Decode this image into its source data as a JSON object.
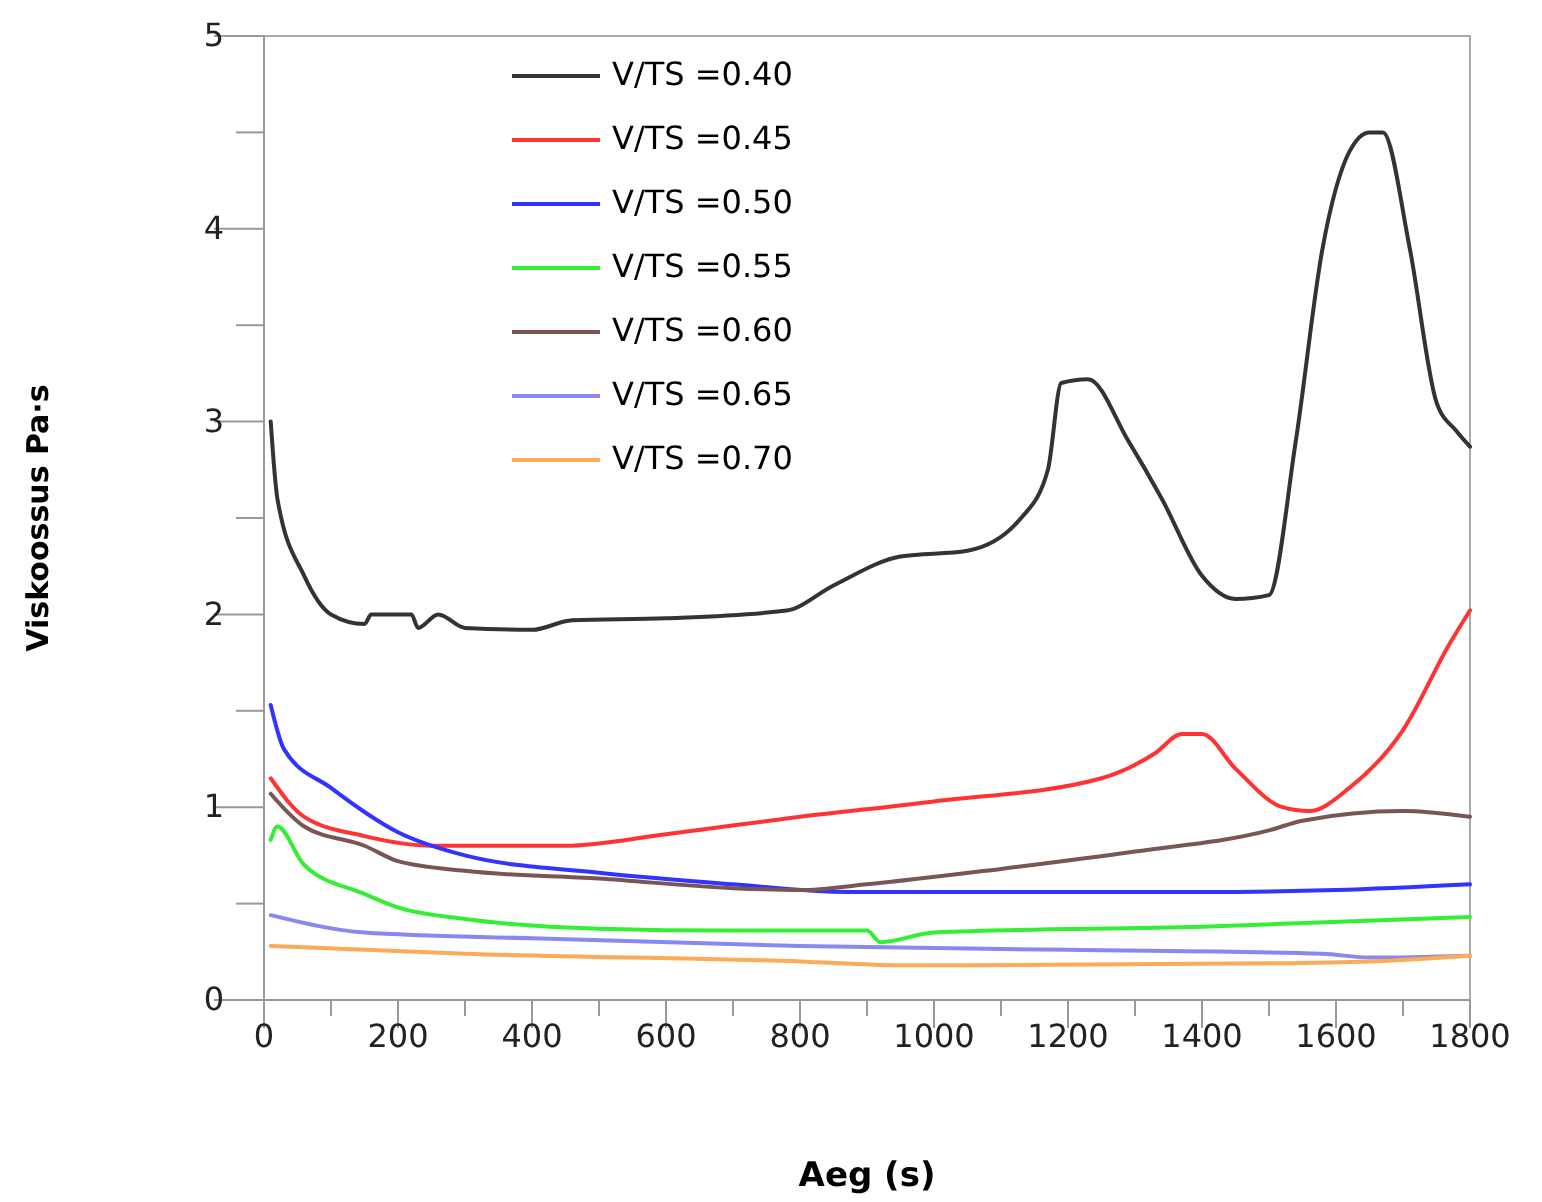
{
  "chart_data": {
    "type": "line",
    "xlabel": "Aeg (s)",
    "ylabel": "Viskoossus Pa·s",
    "xlim": [
      0,
      1800
    ],
    "ylim": [
      0,
      5
    ],
    "xticks": [
      0,
      {
        "value": 100,
        "label": null
      },
      200,
      {
        "value": 300,
        "label": null
      },
      400,
      {
        "value": 500,
        "label": null
      },
      600,
      {
        "value": 700,
        "label": null
      },
      800,
      {
        "value": 900,
        "label": null
      },
      1000,
      {
        "value": 1100,
        "label": null
      },
      1200,
      {
        "value": 1300,
        "label": null
      },
      1400,
      {
        "value": 1500,
        "label": null
      },
      1600,
      {
        "value": 1700,
        "label": null
      },
      1800
    ],
    "yticks": [
      0,
      {
        "value": 0.5,
        "label": null
      },
      1,
      {
        "value": 1.5,
        "label": null
      },
      2,
      {
        "value": 2.5,
        "label": null
      },
      3,
      {
        "value": 3.5,
        "label": null
      },
      4,
      {
        "value": 4.5,
        "label": null
      },
      5
    ],
    "legend": "top left",
    "grid": false,
    "line_style": "solid",
    "marker": "none",
    "series": [
      {
        "name": "V/TS =0.40",
        "color": "#333333",
        "x": [
          10,
          20,
          60,
          100,
          150,
          160,
          220,
          230,
          260,
          300,
          400,
          460,
          600,
          780,
          850,
          950,
          1050,
          1130,
          1170,
          1190,
          1230,
          1290,
          1340,
          1400,
          1450,
          1500,
          1540,
          1580,
          1620,
          1650,
          1670,
          1710,
          1750,
          1780,
          1800
        ],
        "values": [
          3.0,
          2.6,
          2.2,
          2.0,
          1.95,
          2.0,
          2.0,
          1.93,
          2.0,
          1.93,
          1.92,
          1.97,
          1.98,
          2.02,
          2.15,
          2.3,
          2.33,
          2.5,
          2.75,
          3.2,
          3.22,
          2.9,
          2.6,
          2.2,
          2.08,
          2.1,
          2.9,
          3.9,
          4.4,
          4.5,
          4.5,
          3.9,
          3.1,
          2.95,
          2.87
        ]
      },
      {
        "name": "V/TS =0.45",
        "color": "#ff3333",
        "x": [
          10,
          60,
          150,
          250,
          450,
          600,
          800,
          1000,
          1250,
          1330,
          1370,
          1400,
          1450,
          1520,
          1560,
          1620,
          1700,
          1770,
          1800
        ],
        "values": [
          1.15,
          0.95,
          0.85,
          0.8,
          0.8,
          0.86,
          0.95,
          1.03,
          1.15,
          1.28,
          1.38,
          1.38,
          1.2,
          1.0,
          0.98,
          1.1,
          1.4,
          1.85,
          2.02
        ]
      },
      {
        "name": "V/TS =0.50",
        "color": "#3333ff",
        "x": [
          10,
          30,
          100,
          200,
          300,
          500,
          700,
          870,
          1000,
          1400,
          1600,
          1800
        ],
        "values": [
          1.53,
          1.3,
          1.1,
          0.87,
          0.75,
          0.66,
          0.6,
          0.56,
          0.56,
          0.56,
          0.57,
          0.6
        ]
      },
      {
        "name": "V/TS =0.55",
        "color": "#33ee33",
        "x": [
          10,
          20,
          60,
          150,
          200,
          300,
          500,
          700,
          900,
          920,
          1000,
          1400,
          1800
        ],
        "values": [
          0.83,
          0.9,
          0.7,
          0.55,
          0.48,
          0.42,
          0.37,
          0.36,
          0.36,
          0.3,
          0.35,
          0.38,
          0.43
        ]
      },
      {
        "name": "V/TS =0.60",
        "color": "#7a5555",
        "x": [
          10,
          60,
          150,
          200,
          300,
          500,
          700,
          800,
          900,
          1100,
          1300,
          1500,
          1550,
          1700,
          1800
        ],
        "values": [
          1.07,
          0.9,
          0.8,
          0.72,
          0.67,
          0.63,
          0.58,
          0.57,
          0.6,
          0.68,
          0.77,
          0.88,
          0.93,
          0.98,
          0.95
        ]
      },
      {
        "name": "V/TS =0.65",
        "color": "#8888ee",
        "x": [
          10,
          150,
          400,
          800,
          1200,
          1580,
          1650,
          1800
        ],
        "values": [
          0.44,
          0.35,
          0.32,
          0.28,
          0.26,
          0.24,
          0.22,
          0.23
        ]
      },
      {
        "name": "V/TS =0.70",
        "color": "#ffaa55",
        "x": [
          10,
          300,
          800,
          950,
          1500,
          1650,
          1800
        ],
        "values": [
          0.28,
          0.24,
          0.2,
          0.18,
          0.19,
          0.2,
          0.23
        ]
      }
    ]
  }
}
